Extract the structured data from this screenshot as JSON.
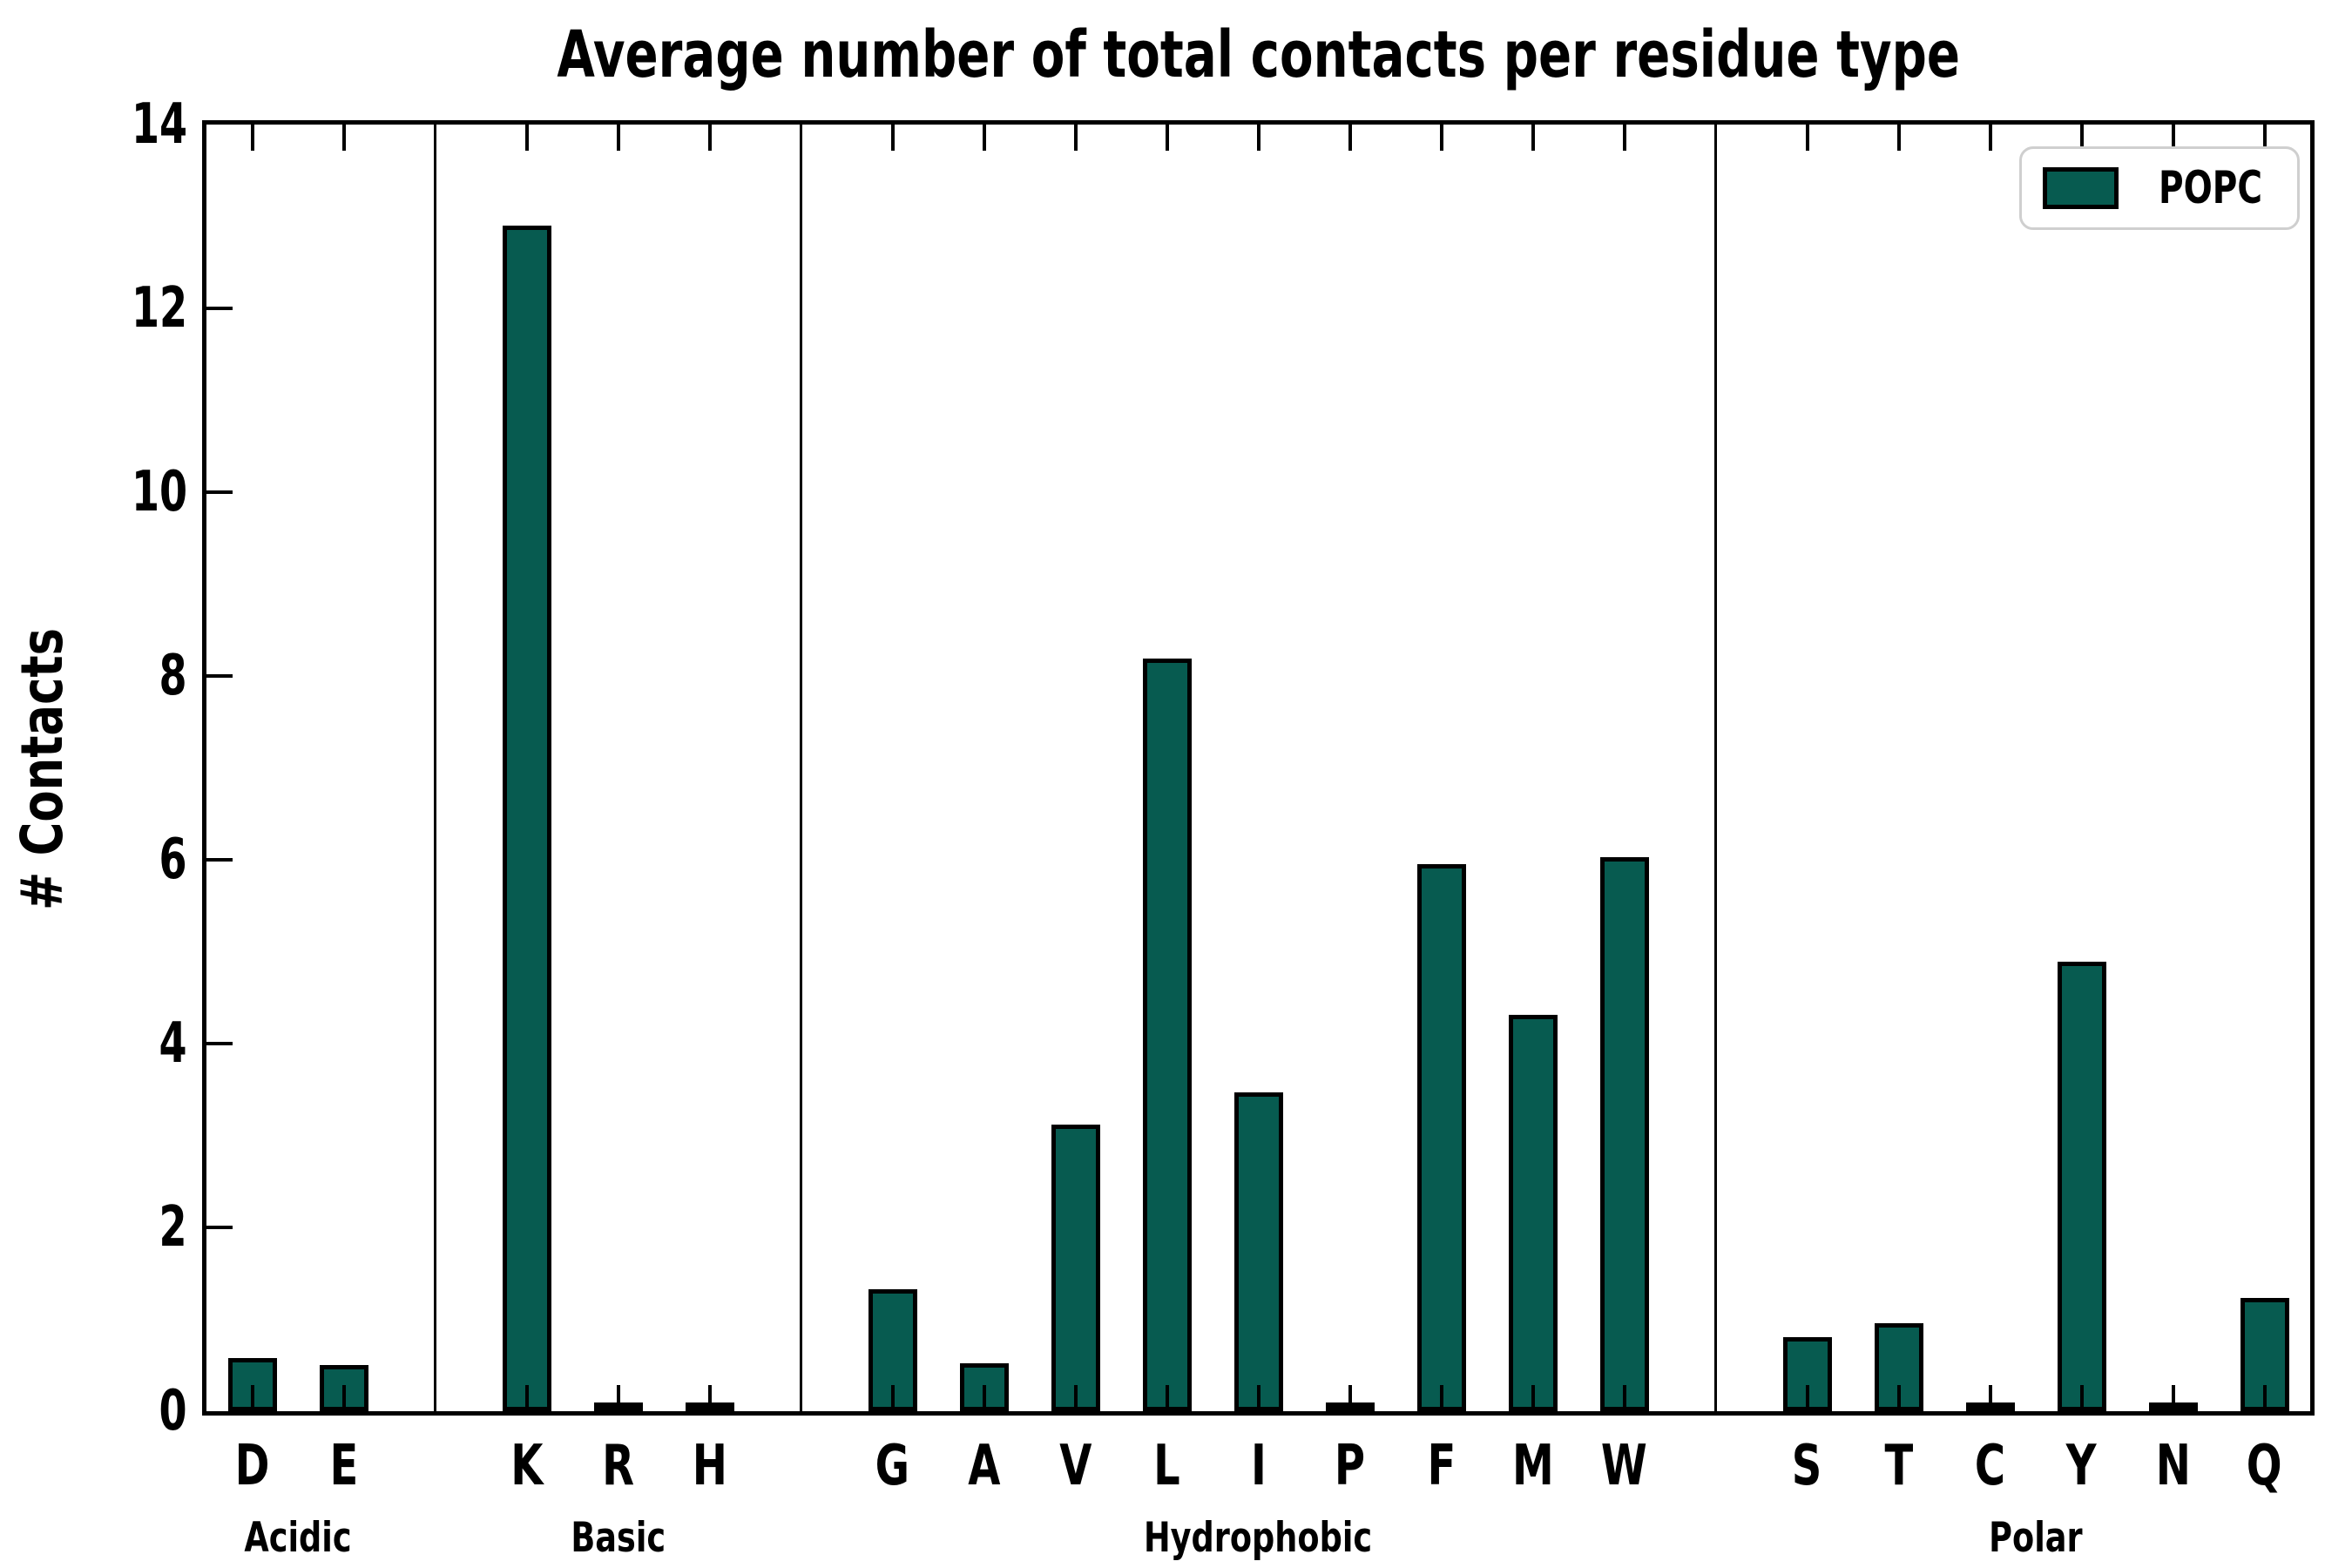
{
  "title": "Average number of total contacts per residue type",
  "ylabel": "# Contacts",
  "legend": {
    "label": "POPC"
  },
  "colors": {
    "bar_fill": "#075b50",
    "bar_edge": "#000000",
    "axis": "#000000",
    "legend_border": "#cfcfcf"
  },
  "chart_data": {
    "type": "bar",
    "title": "Average number of total contacts per residue type",
    "xlabel": "",
    "ylabel": "# Contacts",
    "ylim": [
      0,
      14
    ],
    "yticks": [
      0,
      2,
      4,
      6,
      8,
      10,
      12,
      14
    ],
    "grid": false,
    "legend_entries": [
      "POPC"
    ],
    "legend_position": "upper right",
    "bar_color": "#075b50",
    "groups": [
      {
        "label": "Acidic",
        "categories": [
          "D",
          "E"
        ],
        "values": [
          0.58,
          0.5
        ]
      },
      {
        "label": "Basic",
        "categories": [
          "K",
          "R",
          "H"
        ],
        "values": [
          12.9,
          0.02,
          0.02
        ]
      },
      {
        "label": "Hydrophobic",
        "categories": [
          "G",
          "A",
          "V",
          "L",
          "I",
          "P",
          "F",
          "M",
          "W"
        ],
        "values": [
          1.33,
          0.52,
          3.12,
          8.19,
          3.47,
          0.02,
          5.95,
          4.31,
          6.03
        ]
      },
      {
        "label": "Polar",
        "categories": [
          "S",
          "T",
          "C",
          "Y",
          "N",
          "Q"
        ],
        "values": [
          0.81,
          0.96,
          0.02,
          4.89,
          0.02,
          1.23
        ]
      }
    ]
  }
}
